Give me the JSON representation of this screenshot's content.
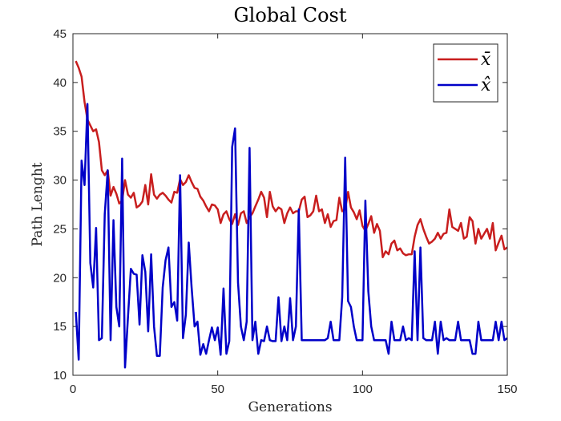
{
  "chart_data": {
    "type": "line",
    "title": "Global Cost",
    "xlabel": "Generations",
    "ylabel": "Path Lenght",
    "xlim": [
      0,
      150
    ],
    "ylim": [
      10,
      45
    ],
    "xticks": [
      0,
      50,
      100,
      150
    ],
    "yticks": [
      10,
      15,
      20,
      25,
      30,
      35,
      40,
      45
    ],
    "grid": false,
    "legend_position": "top-right",
    "series": [
      {
        "name": "x̄",
        "color": "#c81e1e",
        "x": [
          1,
          2,
          3,
          4,
          5,
          6,
          7,
          8,
          9,
          10,
          11,
          12,
          13,
          14,
          15,
          16,
          17,
          18,
          19,
          20,
          21,
          22,
          23,
          24,
          25,
          26,
          27,
          28,
          29,
          30,
          31,
          32,
          33,
          34,
          35,
          36,
          37,
          38,
          39,
          40,
          41,
          42,
          43,
          44,
          45,
          46,
          47,
          48,
          49,
          50,
          51,
          52,
          53,
          54,
          55,
          56,
          57,
          58,
          59,
          60,
          61,
          62,
          63,
          64,
          65,
          66,
          67,
          68,
          69,
          70,
          71,
          72,
          73,
          74,
          75,
          76,
          77,
          78,
          79,
          80,
          81,
          82,
          83,
          84,
          85,
          86,
          87,
          88,
          89,
          90,
          91,
          92,
          93,
          94,
          95,
          96,
          97,
          98,
          99,
          100,
          101,
          102,
          103,
          104,
          105,
          106,
          107,
          108,
          109,
          110,
          111,
          112,
          113,
          114,
          115,
          116,
          117,
          118,
          119,
          120,
          121,
          122,
          123,
          124,
          125,
          126,
          127,
          128,
          129,
          130,
          131,
          132,
          133,
          134,
          135,
          136,
          137,
          138,
          139,
          140,
          141,
          142,
          143,
          144,
          145,
          146,
          147,
          148,
          149,
          150
        ],
        "values": [
          42.2,
          41.5,
          40.6,
          38.0,
          36.2,
          35.6,
          35.0,
          35.2,
          33.9,
          31.0,
          30.5,
          31.0,
          28.4,
          29.3,
          28.6,
          27.6,
          27.9,
          30.0,
          28.5,
          28.2,
          28.7,
          27.2,
          27.4,
          27.8,
          29.5,
          27.5,
          30.6,
          28.5,
          28.1,
          28.5,
          28.7,
          28.4,
          28.0,
          27.7,
          28.8,
          28.7,
          30.1,
          29.5,
          29.8,
          30.5,
          29.8,
          29.2,
          29.1,
          28.3,
          27.9,
          27.3,
          26.8,
          27.5,
          27.4,
          27.0,
          25.6,
          26.5,
          26.8,
          26.0,
          25.5,
          26.5,
          25.4,
          26.6,
          26.8,
          25.6,
          26.2,
          26.6,
          27.3,
          28.0,
          28.8,
          28.2,
          26.2,
          28.8,
          27.3,
          26.8,
          27.2,
          27.0,
          25.6,
          26.6,
          27.2,
          26.6,
          26.8,
          26.8,
          28.0,
          28.3,
          26.2,
          26.4,
          26.8,
          28.4,
          26.8,
          27.0,
          25.6,
          26.5,
          25.2,
          25.8,
          25.9,
          28.2,
          26.8,
          27.0,
          28.8,
          27.2,
          26.7,
          26.0,
          26.9,
          25.3,
          24.8,
          25.5,
          26.3,
          24.6,
          25.5,
          24.8,
          22.1,
          22.7,
          22.4,
          23.5,
          23.8,
          22.8,
          23.0,
          22.5,
          22.3,
          22.4,
          22.4,
          24.2,
          25.4,
          26.0,
          25.0,
          24.2,
          23.5,
          23.7,
          24.0,
          24.6,
          24.0,
          24.5,
          24.6,
          27.0,
          25.2,
          25.0,
          24.8,
          25.6,
          24.0,
          24.2,
          26.2,
          25.8,
          23.5,
          25.0,
          24.0,
          24.5,
          25.0,
          24.0,
          25.6,
          22.8,
          23.6,
          24.3,
          22.9,
          23.1
        ]
      },
      {
        "name": "x̂",
        "color": "#0000c8",
        "x": [
          1,
          2,
          3,
          4,
          5,
          6,
          7,
          8,
          9,
          10,
          11,
          12,
          13,
          14,
          15,
          16,
          17,
          18,
          19,
          20,
          21,
          22,
          23,
          24,
          25,
          26,
          27,
          28,
          29,
          30,
          31,
          32,
          33,
          34,
          35,
          36,
          37,
          38,
          39,
          40,
          41,
          42,
          43,
          44,
          45,
          46,
          47,
          48,
          49,
          50,
          51,
          52,
          53,
          54,
          55,
          56,
          57,
          58,
          59,
          60,
          61,
          62,
          63,
          64,
          65,
          66,
          67,
          68,
          69,
          70,
          71,
          72,
          73,
          74,
          75,
          76,
          77,
          78,
          79,
          80,
          81,
          82,
          83,
          84,
          85,
          86,
          87,
          88,
          89,
          90,
          91,
          92,
          93,
          94,
          95,
          96,
          97,
          98,
          99,
          100,
          101,
          102,
          103,
          104,
          105,
          106,
          107,
          108,
          109,
          110,
          111,
          112,
          113,
          114,
          115,
          116,
          117,
          118,
          119,
          120,
          121,
          122,
          123,
          124,
          125,
          126,
          127,
          128,
          129,
          130,
          131,
          132,
          133,
          134,
          135,
          136,
          137,
          138,
          139,
          140,
          141,
          142,
          143,
          144,
          145,
          146,
          147,
          148,
          149,
          150
        ],
        "values": [
          16.5,
          11.6,
          32.0,
          29.5,
          37.8,
          21.5,
          19.0,
          25.1,
          13.6,
          13.8,
          26.5,
          31.0,
          13.6,
          25.9,
          17.0,
          15.0,
          32.2,
          10.8,
          16.0,
          20.9,
          20.4,
          20.3,
          15.2,
          22.3,
          20.6,
          14.5,
          22.4,
          15.0,
          12.0,
          12.0,
          19.0,
          21.8,
          23.1,
          17.0,
          17.5,
          15.6,
          30.5,
          13.8,
          16.2,
          23.6,
          19.0,
          15.0,
          15.5,
          12.1,
          13.2,
          12.2,
          13.6,
          14.9,
          13.6,
          14.9,
          12.1,
          18.9,
          12.2,
          13.5,
          33.4,
          35.3,
          19.5,
          15.0,
          13.6,
          15.5,
          33.3,
          13.6,
          15.5,
          12.2,
          13.6,
          13.5,
          15.0,
          13.6,
          13.5,
          13.5,
          18.0,
          13.5,
          15.0,
          13.6,
          17.9,
          13.6,
          15.0,
          27.0,
          13.6,
          13.6,
          13.6,
          13.6,
          13.6,
          13.6,
          13.6,
          13.6,
          13.6,
          13.8,
          15.5,
          13.6,
          13.6,
          13.6,
          18.0,
          32.3,
          17.6,
          17.0,
          15.0,
          13.6,
          13.6,
          13.6,
          27.9,
          18.6,
          15.0,
          13.6,
          13.6,
          13.6,
          13.6,
          13.6,
          12.2,
          15.5,
          13.6,
          13.6,
          13.6,
          15.0,
          13.6,
          13.8,
          13.6,
          22.7,
          13.6,
          23.1,
          13.8,
          13.6,
          13.6,
          13.6,
          15.5,
          12.2,
          15.5,
          13.6,
          13.8,
          13.6,
          13.6,
          13.6,
          15.5,
          13.6,
          13.6,
          13.6,
          13.6,
          12.2,
          12.2,
          15.5,
          13.6,
          13.6,
          13.6,
          13.6,
          13.6,
          15.5,
          13.6,
          15.5,
          13.6,
          13.8
        ]
      }
    ]
  }
}
